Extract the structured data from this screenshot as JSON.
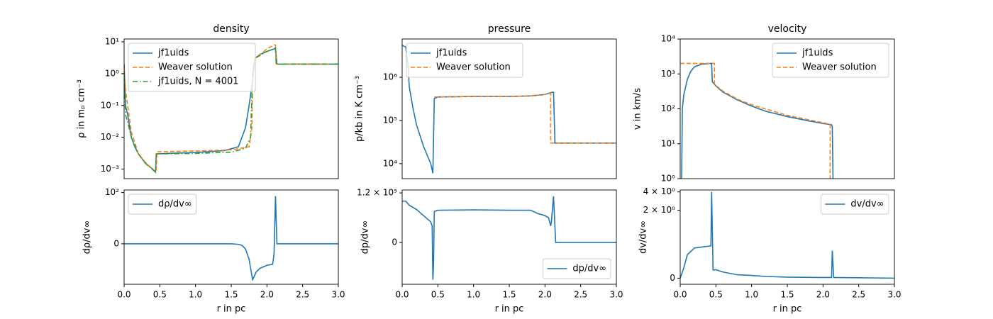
{
  "chart_data": [
    {
      "type": "line",
      "title": "density",
      "ylabel": "ρ in mₚ cm⁻³",
      "yscale": "log",
      "legend": "upper left",
      "xlim": [
        0,
        3
      ],
      "ylim": [
        0.0005,
        12.3
      ],
      "yticks": [
        {
          "value": 0.001,
          "label": "10⁻³"
        },
        {
          "value": 0.01,
          "label": "10⁻²"
        },
        {
          "value": 0.1,
          "label": "10⁻¹"
        },
        {
          "value": 1,
          "label": "10⁰"
        },
        {
          "value": 10,
          "label": "10¹"
        }
      ],
      "series": [
        {
          "name": "jf1uids",
          "color": "#1f77b4",
          "linestyle": "solid",
          "x": [
            0,
            0.02,
            0.05,
            0.1,
            0.15,
            0.2,
            0.3,
            0.4,
            0.44,
            0.45,
            0.6,
            1.0,
            1.4,
            1.6,
            1.7,
            1.75,
            1.8,
            1.83,
            1.9,
            2.0,
            2.1,
            2.12,
            2.14,
            2.5,
            3.0
          ],
          "values": [
            2,
            0.1,
            0.05,
            0.01,
            0.005,
            0.003,
            0.0015,
            0.001,
            0.0008,
            0.003,
            0.0031,
            0.0033,
            0.0038,
            0.005,
            0.02,
            0.1,
            0.6,
            3,
            4,
            5,
            6,
            6.5,
            2,
            2,
            2
          ]
        },
        {
          "name": "Weaver solution",
          "color": "#ff7f0e",
          "linestyle": "dashed",
          "x": [
            0,
            0.02,
            0.05,
            0.1,
            0.2,
            0.3,
            0.4,
            0.44,
            0.45,
            0.46,
            1.0,
            1.5,
            1.75,
            1.79,
            1.8,
            1.83,
            2.0,
            2.1,
            2.12,
            2.13,
            3.0
          ],
          "values": [
            1.5,
            0.3,
            0.1,
            0.015,
            0.003,
            0.0016,
            0.001,
            0.0008,
            0.0008,
            0.0035,
            0.0037,
            0.004,
            0.005,
            0.02,
            1,
            3,
            6,
            8,
            8,
            2,
            2
          ]
        },
        {
          "name": "jf1uids, N = 4001",
          "color": "#2ca02c",
          "linestyle": "dashdot",
          "x": [
            0,
            0.02,
            0.05,
            0.1,
            0.2,
            0.3,
            0.44,
            0.45,
            1.0,
            1.5,
            1.7,
            1.77,
            1.8,
            1.83,
            2.0,
            2.1,
            2.12,
            2.13,
            3.0
          ],
          "values": [
            1.0,
            0.05,
            0.03,
            0.01,
            0.003,
            0.0015,
            0.0008,
            0.003,
            0.0031,
            0.0034,
            0.0045,
            0.01,
            1,
            3,
            5,
            6,
            6,
            2,
            2
          ]
        }
      ]
    },
    {
      "type": "line",
      "title": "pressure",
      "ylabel": "p/kb in K cm⁻³",
      "yscale": "log",
      "legend": "upper left",
      "xlim": [
        0,
        3
      ],
      "ylim": [
        4500,
        7700000
      ],
      "yticks": [
        {
          "value": 10000,
          "label": "10⁴"
        },
        {
          "value": 100000,
          "label": "10⁵"
        },
        {
          "value": 1000000,
          "label": "10⁶"
        }
      ],
      "series": [
        {
          "name": "jf1uids",
          "color": "#1f77b4",
          "linestyle": "solid",
          "x": [
            0,
            0.05,
            0.08,
            0.1,
            0.15,
            0.2,
            0.3,
            0.4,
            0.43,
            0.45,
            0.5,
            1.0,
            1.5,
            1.8,
            2.0,
            2.1,
            2.12,
            2.14,
            3.0
          ],
          "values": [
            5500000,
            5000000,
            2000000,
            600000,
            200000,
            80000,
            25000,
            10000,
            6000,
            320000,
            350000,
            360000,
            360000,
            370000,
            400000,
            450000,
            450000,
            30000,
            30000
          ]
        },
        {
          "name": "Weaver solution",
          "color": "#ff7f0e",
          "linestyle": "dashed",
          "x": [
            0.45,
            1.0,
            1.5,
            1.8,
            2.0,
            2.08,
            2.08,
            3.0
          ],
          "values": [
            350000,
            360000,
            360000,
            370000,
            400000,
            430000,
            30000,
            30000
          ]
        }
      ]
    },
    {
      "type": "line",
      "title": "velocity",
      "ylabel": "v in km/s",
      "yscale": "log",
      "legend": "upper right",
      "xlim": [
        0,
        3
      ],
      "ylim": [
        1,
        10000
      ],
      "yticks": [
        {
          "value": 1,
          "label": "10⁰"
        },
        {
          "value": 10,
          "label": "10¹"
        },
        {
          "value": 100,
          "label": "10²"
        },
        {
          "value": 1000,
          "label": "10³"
        },
        {
          "value": 10000,
          "label": "10⁴"
        }
      ],
      "series": [
        {
          "name": "jf1uids",
          "color": "#1f77b4",
          "linestyle": "solid",
          "x": [
            0.02,
            0.03,
            0.05,
            0.1,
            0.15,
            0.2,
            0.3,
            0.44,
            0.45,
            0.5,
            0.6,
            0.8,
            1.0,
            1.2,
            1.5,
            1.8,
            2.0,
            2.12,
            2.13,
            2.14
          ],
          "values": [
            1,
            100,
            250,
            700,
            1200,
            1600,
            1900,
            2000,
            600,
            450,
            300,
            180,
            120,
            85,
            60,
            45,
            38,
            35,
            30,
            1
          ]
        },
        {
          "name": "Weaver solution",
          "color": "#ff7f0e",
          "linestyle": "dashed",
          "x": [
            0,
            0.48,
            0.48,
            0.6,
            0.8,
            1.0,
            1.5,
            2.0,
            2.1,
            2.1
          ],
          "values": [
            2000,
            2000,
            500,
            320,
            190,
            130,
            65,
            40,
            36,
            1
          ]
        }
      ]
    },
    {
      "type": "line",
      "ylabel": "dρ/dv∞",
      "xlabel": "r in pc",
      "yscale": "linear",
      "legend": "upper left",
      "xlim": [
        0,
        3
      ],
      "ylim": [
        -79,
        105
      ],
      "xticks": [
        {
          "value": 0,
          "label": "0.0"
        },
        {
          "value": 0.5,
          "label": "0.5"
        },
        {
          "value": 1,
          "label": "1.0"
        },
        {
          "value": 1.5,
          "label": "1.5"
        },
        {
          "value": 2,
          "label": "2.0"
        },
        {
          "value": 2.5,
          "label": "2.5"
        },
        {
          "value": 3,
          "label": "3.0"
        }
      ],
      "yticks": [
        0,
        {
          "value": 100,
          "label": "10²"
        }
      ],
      "series": [
        {
          "name": "dρ/dv∞",
          "color": "#1f77b4",
          "linestyle": "solid",
          "x": [
            0,
            1.0,
            1.5,
            1.6,
            1.65,
            1.7,
            1.75,
            1.78,
            1.8,
            1.85,
            1.9,
            2.0,
            2.08,
            2.1,
            2.12,
            2.14,
            2.16,
            3.0
          ],
          "values": [
            0,
            0,
            0,
            -1,
            -3,
            -10,
            -30,
            -55,
            -70,
            -55,
            -48,
            -42,
            -40,
            -20,
            93,
            0,
            0,
            0
          ]
        }
      ]
    },
    {
      "type": "line",
      "ylabel": "dp/dv∞",
      "xlabel": "r in pc",
      "yscale": "linear",
      "legend": "lower right",
      "xlim": [
        0,
        3
      ],
      "ylim": [
        -101000,
        127000
      ],
      "xticks": [
        {
          "value": 0,
          "label": "0.0"
        },
        {
          "value": 0.5,
          "label": "0.5"
        },
        {
          "value": 1,
          "label": "1.0"
        },
        {
          "value": 1.5,
          "label": "1.5"
        },
        {
          "value": 2,
          "label": "2.0"
        },
        {
          "value": 2.5,
          "label": "2.5"
        },
        {
          "value": 3,
          "label": "3.0"
        }
      ],
      "yticks": [
        0,
        {
          "value": 120000,
          "label": "1.2 × 10⁵"
        }
      ],
      "series": [
        {
          "name": "dp/dv∞",
          "color": "#1f77b4",
          "linestyle": "solid",
          "x": [
            0,
            0.05,
            0.1,
            0.2,
            0.3,
            0.4,
            0.42,
            0.43,
            0.44,
            0.45,
            0.5,
            1.0,
            1.5,
            1.8,
            1.9,
            2.0,
            2.05,
            2.08,
            2.09,
            2.12,
            2.15,
            3.0
          ],
          "values": [
            100000,
            100000,
            90000,
            80000,
            65000,
            50000,
            40000,
            -90000,
            -50000,
            75000,
            78000,
            79000,
            78000,
            78000,
            70000,
            65000,
            60000,
            40000,
            50000,
            112000,
            0,
            0
          ]
        }
      ]
    },
    {
      "type": "line",
      "ylabel": "dv/dv∞",
      "xlabel": "r in pc",
      "yscale": "symlog",
      "linthresh": 2,
      "legend": "upper right",
      "xlim": [
        0,
        3
      ],
      "ylim": [
        -0.18,
        4.3
      ],
      "xticks": [
        {
          "value": 0,
          "label": "0.0"
        },
        {
          "value": 0.5,
          "label": "0.5"
        },
        {
          "value": 1,
          "label": "1.0"
        },
        {
          "value": 1.5,
          "label": "1.5"
        },
        {
          "value": 2,
          "label": "2.0"
        },
        {
          "value": 2.5,
          "label": "2.5"
        },
        {
          "value": 3,
          "label": "3.0"
        }
      ],
      "yticks": [
        0,
        {
          "value": 2,
          "label": "2 × 10⁰"
        },
        {
          "value": 4,
          "label": "4 × 10⁰"
        }
      ],
      "series": [
        {
          "name": "dv/dv∞",
          "color": "#1f77b4",
          "linestyle": "solid",
          "x": [
            0,
            0.05,
            0.1,
            0.2,
            0.43,
            0.44,
            0.46,
            0.5,
            0.6,
            0.8,
            1.0,
            1.2,
            1.5,
            2.0,
            2.12,
            2.13,
            2.15,
            3.0
          ],
          "values": [
            0,
            0.3,
            0.69,
            0.89,
            0.95,
            4.0,
            0.24,
            0.25,
            0.18,
            0.1,
            0.08,
            0.05,
            0.03,
            0.02,
            0.02,
            0.81,
            0.02,
            0
          ]
        }
      ]
    }
  ]
}
